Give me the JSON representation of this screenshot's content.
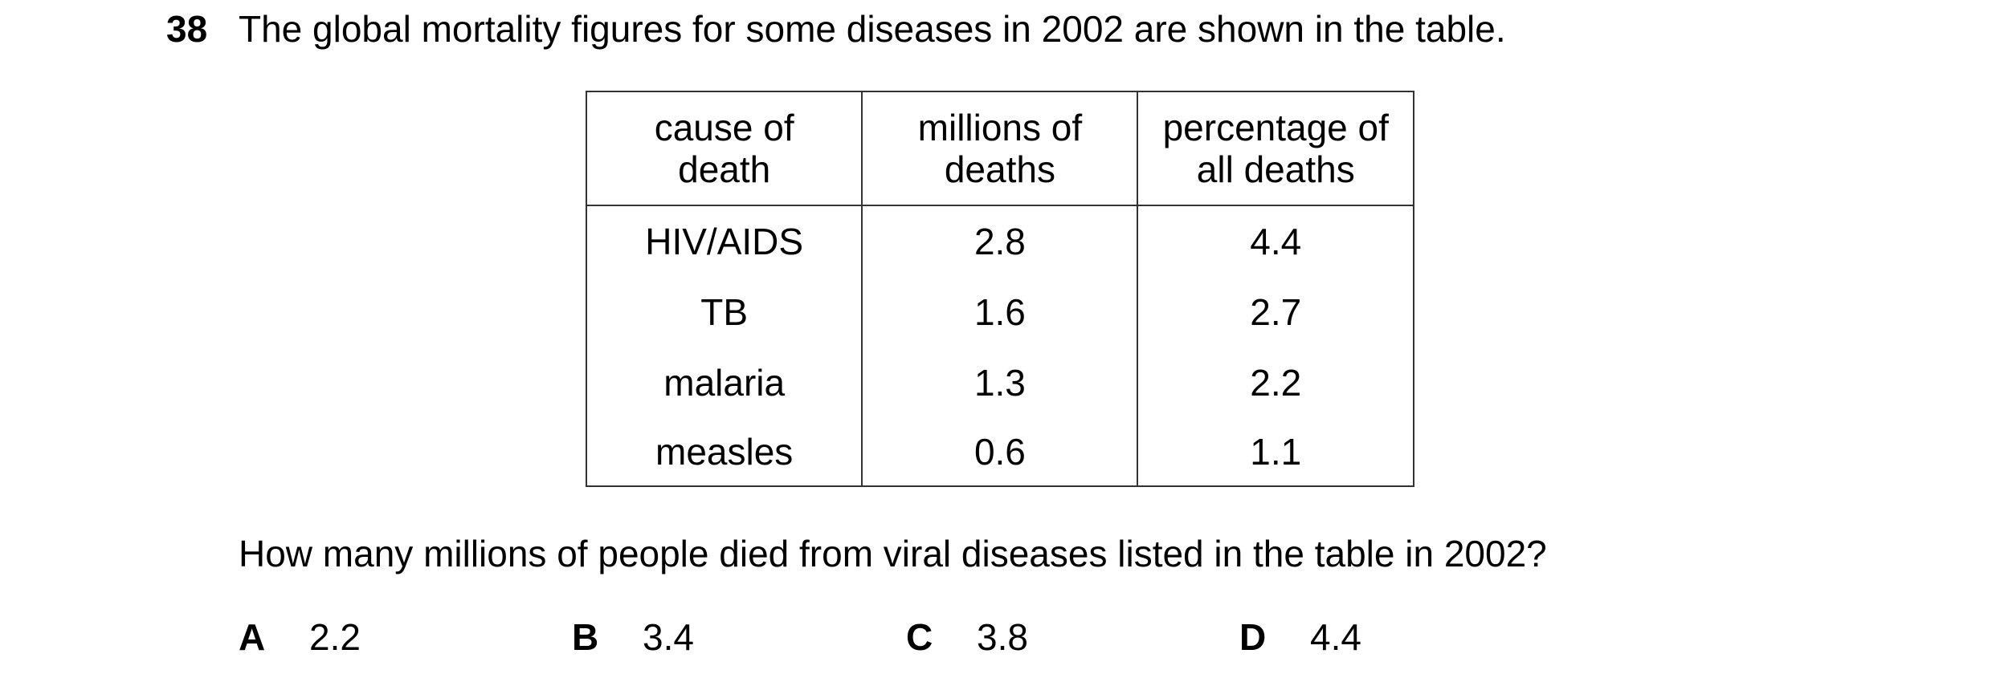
{
  "question_number": "38",
  "stem": "The global mortality figures for some diseases in 2002 are shown in the table.",
  "table": {
    "headers": [
      [
        "cause of",
        "death"
      ],
      [
        "millions of",
        "deaths"
      ],
      [
        "percentage of",
        "all deaths"
      ]
    ],
    "rows": [
      [
        "HIV/AIDS",
        "2.8",
        "4.4"
      ],
      [
        "TB",
        "1.6",
        "2.7"
      ],
      [
        "malaria",
        "1.3",
        "2.2"
      ],
      [
        "measles",
        "0.6",
        "1.1"
      ]
    ]
  },
  "question": "How many millions of people died from viral diseases listed in the table in 2002?",
  "options": [
    {
      "letter": "A",
      "value": "2.2"
    },
    {
      "letter": "B",
      "value": "3.4"
    },
    {
      "letter": "C",
      "value": "3.8"
    },
    {
      "letter": "D",
      "value": "4.4"
    }
  ]
}
